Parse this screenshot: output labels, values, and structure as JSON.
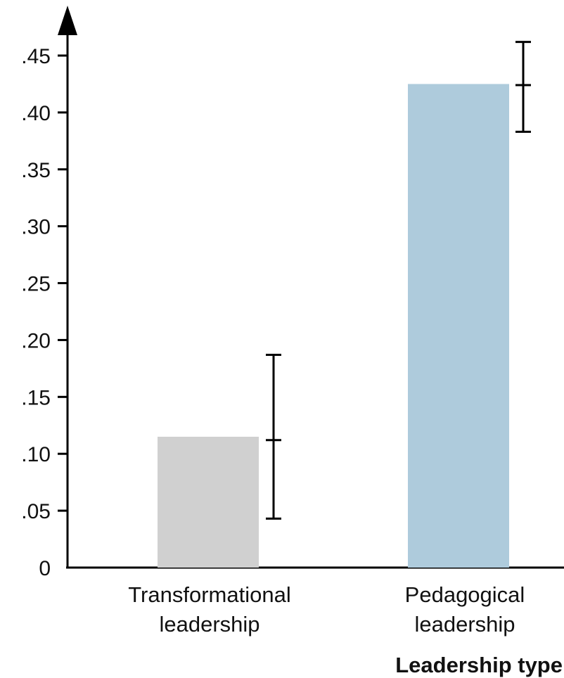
{
  "chart_data": {
    "type": "bar",
    "title": "",
    "xlabel": "Leadership type",
    "ylabel": "",
    "ylim": [
      0,
      0.45
    ],
    "yticks": [
      {
        "value": 0,
        "label": "0"
      },
      {
        "value": 0.05,
        "label": ".05"
      },
      {
        "value": 0.1,
        "label": ".10"
      },
      {
        "value": 0.15,
        "label": ".15"
      },
      {
        "value": 0.2,
        "label": ".20"
      },
      {
        "value": 0.25,
        "label": ".25"
      },
      {
        "value": 0.3,
        "label": ".30"
      },
      {
        "value": 0.35,
        "label": ".35"
      },
      {
        "value": 0.4,
        "label": ".40"
      },
      {
        "value": 0.45,
        "label": ".45"
      }
    ],
    "categories": [
      {
        "line1": "Transformational",
        "line2": "leadership"
      },
      {
        "line1": "Pedagogical",
        "line2": "leadership"
      }
    ],
    "values": [
      0.115,
      0.425
    ],
    "error_bars": [
      {
        "center": 0.112,
        "low": 0.043,
        "high": 0.187
      },
      {
        "center": 0.424,
        "low": 0.383,
        "high": 0.462
      }
    ],
    "colors": [
      "#d0d0d0",
      "#aecbdc"
    ],
    "grid": false,
    "legend": "none"
  }
}
